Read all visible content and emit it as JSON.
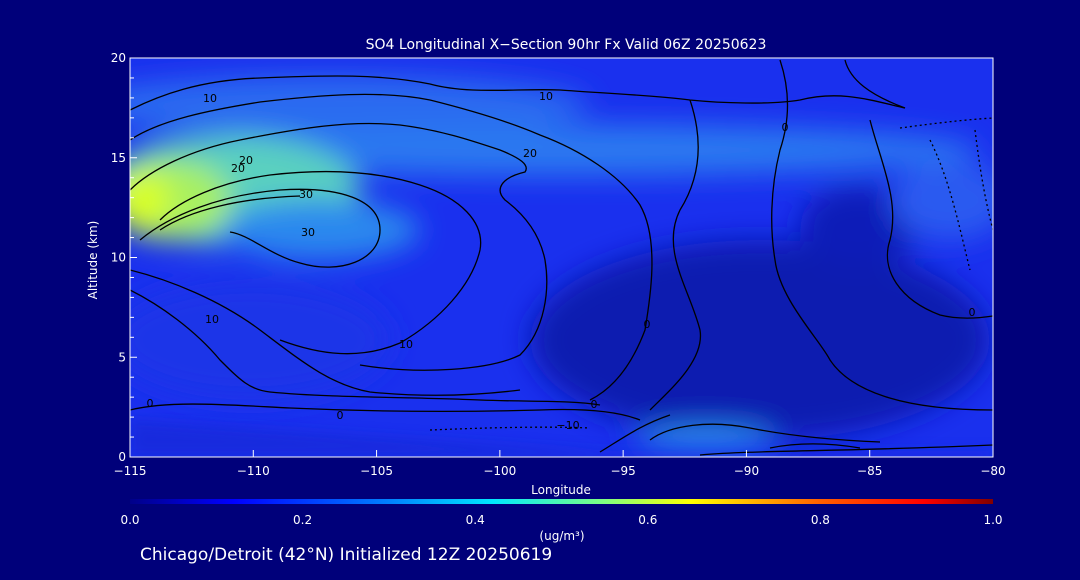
{
  "chart_data": {
    "type": "heatmap",
    "title": "SO4 Longitudinal X−Section 90hr  Fx Valid 06Z 20250623",
    "xlabel": "Longitude",
    "ylabel": "Altitude (km)",
    "xlim": [
      -115,
      -80
    ],
    "ylim": [
      0,
      20
    ],
    "x_ticks": [
      "−115",
      "−110",
      "−105",
      "−100",
      "−95",
      "−90",
      "−85",
      "−80"
    ],
    "y_ticks": [
      "0",
      "5",
      "10",
      "15",
      "20"
    ],
    "colorbar": {
      "label": "(ug/m³)",
      "min": 0.0,
      "max": 1.0,
      "ticks": [
        "0.0",
        "0.2",
        "0.4",
        "0.6",
        "0.8",
        "1.0"
      ]
    },
    "contour_labels": [
      "10",
      "20",
      "30",
      "30",
      "20",
      "10",
      "0",
      "0",
      "0",
      "−10",
      "10",
      "10",
      "20",
      "0",
      "0",
      "0"
    ],
    "field_peaks": [
      {
        "lon": -115,
        "alt": 13,
        "value": 0.6
      },
      {
        "lon": -110,
        "alt": 14,
        "value": 0.45
      },
      {
        "lon": -105,
        "alt": 13,
        "value": 0.38
      },
      {
        "lon": -90,
        "alt": 0.8,
        "value": 0.35
      }
    ],
    "footer": "Chicago/Detroit (42°N) Initialized 12Z 20250619"
  },
  "colors": {
    "background": "#00007a",
    "field_base": "#1a2ef0",
    "field_low": "#0018b8",
    "field_mid": "#2a8cf0",
    "field_high": "#c8ff28",
    "contour": "#000000"
  }
}
